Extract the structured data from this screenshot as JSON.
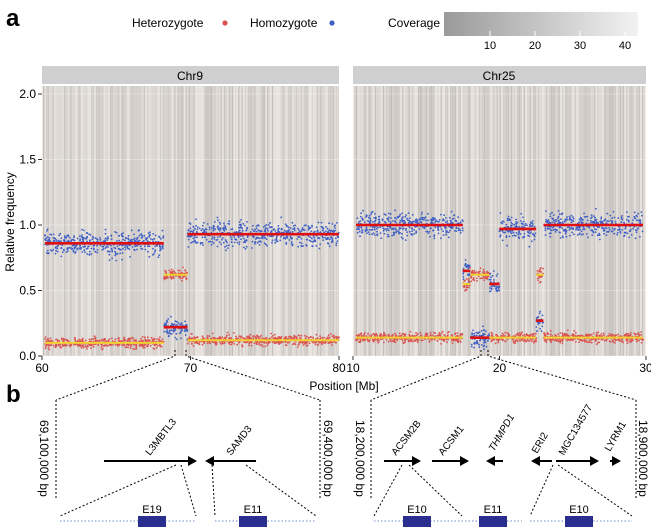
{
  "panel_labels": {
    "a": "a",
    "b": "b"
  },
  "legend": {
    "heterozygote": "Heterozygote",
    "homozygote": "Homozygote",
    "coverage_label": "Coverage",
    "coverage_ticks": [
      "10",
      "20",
      "30",
      "40"
    ]
  },
  "colors": {
    "heterozygote": "#d9534f",
    "homozygote": "#3f5fc4",
    "segment_red": "#e01010",
    "segment_yellow": "#f2d230",
    "panel_bg": "#f4e8dd",
    "strip_bg": "#cfcfcf"
  },
  "chart_data": {
    "type": "scatter",
    "ylabel": "Relative frequency",
    "xlabel": "Position [Mb]",
    "ylim": [
      0,
      2.0
    ],
    "yticks": [
      "0.0",
      "0.5",
      "1.0",
      "1.5",
      "2.0"
    ],
    "facets": [
      {
        "name": "Chr9",
        "xlim": [
          60,
          80
        ],
        "xticks": [
          "60",
          "70",
          "80"
        ],
        "homozygote_segments": [
          {
            "x0": 60.2,
            "x1": 68.2,
            "y": 0.86
          },
          {
            "x0": 68.2,
            "x1": 69.8,
            "y": 0.22
          },
          {
            "x0": 69.8,
            "x1": 80.0,
            "y": 0.93
          }
        ],
        "heterozygote_segments": [
          {
            "x0": 60.2,
            "x1": 68.2,
            "y": 0.1
          },
          {
            "x0": 68.2,
            "x1": 69.8,
            "y": 0.62
          },
          {
            "x0": 69.8,
            "x1": 80.0,
            "y": 0.12
          }
        ]
      },
      {
        "name": "Chr25",
        "xlim": [
          10,
          30
        ],
        "xticks": [
          "10",
          "20",
          "30"
        ],
        "homozygote_segments": [
          {
            "x0": 10.2,
            "x1": 17.5,
            "y": 1.0
          },
          {
            "x0": 17.5,
            "x1": 18.0,
            "y": 0.65
          },
          {
            "x0": 18.0,
            "x1": 19.3,
            "y": 0.14
          },
          {
            "x0": 19.3,
            "x1": 20.0,
            "y": 0.55
          },
          {
            "x0": 20.0,
            "x1": 22.5,
            "y": 0.97
          },
          {
            "x0": 22.5,
            "x1": 23.0,
            "y": 0.27
          },
          {
            "x0": 23.0,
            "x1": 29.8,
            "y": 1.0
          }
        ],
        "heterozygote_segments": [
          {
            "x0": 10.2,
            "x1": 17.5,
            "y": 0.14
          },
          {
            "x0": 17.5,
            "x1": 18.0,
            "y": 0.55
          },
          {
            "x0": 18.0,
            "x1": 19.3,
            "y": 0.62
          },
          {
            "x0": 19.3,
            "x1": 20.0,
            "y": 0.14
          },
          {
            "x0": 20.0,
            "x1": 22.5,
            "y": 0.14
          },
          {
            "x0": 22.5,
            "x1": 23.0,
            "y": 0.62
          },
          {
            "x0": 23.0,
            "x1": 29.8,
            "y": 0.14
          }
        ]
      }
    ]
  },
  "gene_panel": {
    "left": {
      "start_label": "69,100,000 bp",
      "end_label": "69,400,000 bp",
      "genes": [
        {
          "name": "L3MBTL3",
          "dir": "right"
        },
        {
          "name": "SAMD3",
          "dir": "left"
        }
      ],
      "exons": [
        "E19",
        "E11"
      ]
    },
    "right": {
      "start_label": "18,200,000 bp",
      "end_label": "18,900,000 bp",
      "genes": [
        {
          "name": "ACSM2B",
          "dir": "right"
        },
        {
          "name": "ACSM1",
          "dir": "right"
        },
        {
          "name": "THMPD1",
          "dir": "left"
        },
        {
          "name": "ERI2",
          "dir": "left"
        },
        {
          "name": "MGC134577",
          "dir": "right"
        },
        {
          "name": "LYRM1",
          "dir": "right"
        }
      ],
      "exons": [
        "E10",
        "E11",
        "E10"
      ]
    }
  }
}
